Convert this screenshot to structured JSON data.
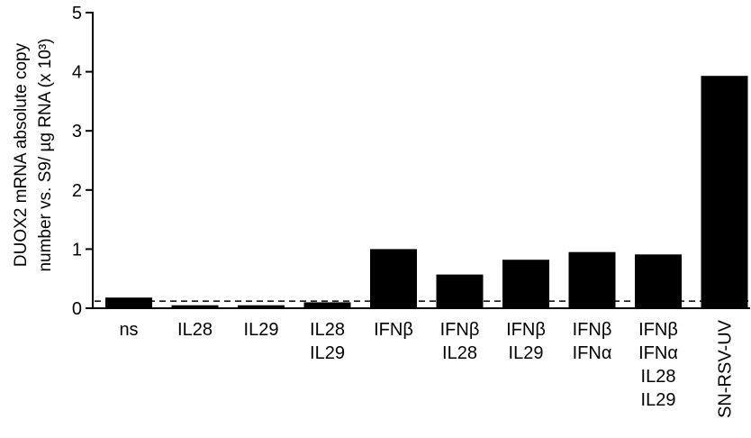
{
  "chart_data": {
    "type": "bar",
    "ylabel_lines": [
      "DUOX2 mRNA absolute copy",
      "number vs. S9/ µg RNA (x 10³)"
    ],
    "xlabel": "",
    "ylim": [
      0,
      5
    ],
    "yticks": [
      "0",
      "1",
      "2",
      "3",
      "4",
      "5"
    ],
    "grid": false,
    "categories": [
      [
        "ns"
      ],
      [
        "IL28"
      ],
      [
        "IL29"
      ],
      [
        "IL28",
        "IL29"
      ],
      [
        "IFNβ"
      ],
      [
        "IFNβ",
        "IL28"
      ],
      [
        "IFNβ",
        "IL29"
      ],
      [
        "IFNβ",
        "IFNα"
      ],
      [
        "IFNβ",
        "IFNα",
        "IL28",
        "IL29"
      ],
      [
        "SN-RSV-UV"
      ]
    ],
    "category_rotated": [
      false,
      false,
      false,
      false,
      false,
      false,
      false,
      false,
      false,
      true
    ],
    "values": [
      0.18,
      0.05,
      0.05,
      0.1,
      1.0,
      0.57,
      0.82,
      0.95,
      0.91,
      3.93
    ],
    "threshold": 0.12,
    "colors": {
      "bar": "#000000",
      "axis": "#000000",
      "threshold": "#000000"
    }
  }
}
